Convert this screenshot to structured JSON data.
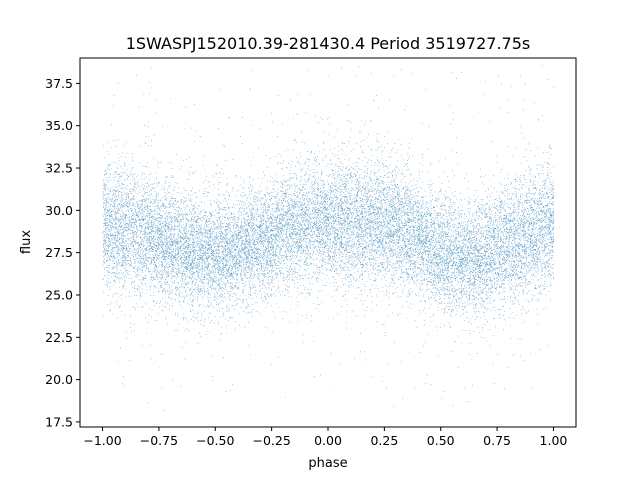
{
  "chart_data": {
    "type": "scatter",
    "title": "1SWASPJ152010.39-281430.4 Period 3519727.75s",
    "xlabel": "phase",
    "ylabel": "flux",
    "xlim": [
      -1.1,
      1.1
    ],
    "ylim": [
      17.2,
      39.0
    ],
    "grid": false,
    "legend": "none",
    "marker_color": "#1f77b4",
    "x_ticks": [
      -1.0,
      -0.75,
      -0.5,
      -0.25,
      0.0,
      0.25,
      0.5,
      0.75,
      1.0
    ],
    "x_tick_labels": [
      "−1.00",
      "−0.75",
      "−0.50",
      "−0.25",
      "0.00",
      "0.25",
      "0.50",
      "0.75",
      "1.00"
    ],
    "y_ticks": [
      17.5,
      20.0,
      22.5,
      25.0,
      27.5,
      30.0,
      32.5,
      35.0,
      37.5
    ],
    "y_tick_labels": [
      "17.5",
      "20.0",
      "22.5",
      "25.0",
      "27.5",
      "30.0",
      "32.5",
      "35.0",
      "37.5"
    ],
    "trend": {
      "phase": [
        -1.0,
        -0.9,
        -0.8,
        -0.7,
        -0.6,
        -0.5,
        -0.4,
        -0.3,
        -0.2,
        -0.1,
        0.0,
        0.1,
        0.2,
        0.3,
        0.4,
        0.5,
        0.6,
        0.7,
        0.8,
        0.9,
        1.0
      ],
      "median_flux": [
        29.0,
        28.9,
        28.5,
        28.0,
        27.6,
        27.3,
        27.7,
        28.2,
        28.8,
        29.3,
        29.3,
        29.3,
        29.3,
        29.0,
        28.3,
        27.4,
        27.1,
        27.5,
        28.0,
        28.5,
        29.2
      ],
      "spread": [
        1.8,
        1.9,
        1.9,
        1.7,
        1.7,
        1.7,
        1.6,
        1.6,
        1.7,
        1.8,
        1.8,
        1.9,
        1.9,
        1.8,
        1.7,
        1.7,
        1.6,
        1.7,
        1.7,
        1.9,
        1.8
      ]
    },
    "approx_point_count": 20000
  }
}
